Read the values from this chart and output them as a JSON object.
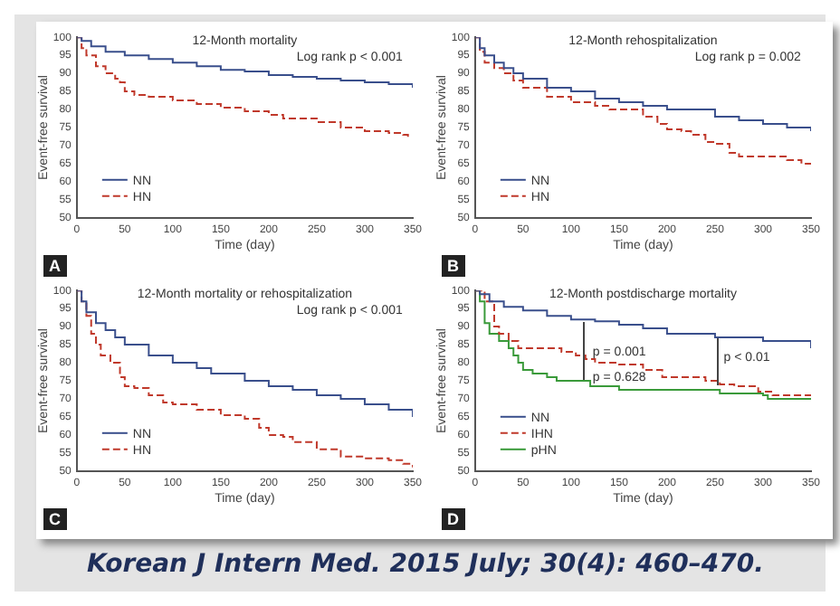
{
  "chart_data": [
    {
      "type": "step",
      "title": "12-Month mortality",
      "xlabel": "Time (day)",
      "ylabel": "Event-free survival",
      "annotations": [
        "A",
        "Log rank p < 0.001"
      ],
      "xlim": [
        0,
        350
      ],
      "xticks": [
        0,
        50,
        100,
        150,
        200,
        250,
        300,
        350
      ],
      "ylim": [
        50,
        100
      ],
      "yticks": [
        50,
        55,
        60,
        65,
        70,
        75,
        80,
        85,
        90,
        95,
        100
      ],
      "legend": "bottom left",
      "series": [
        {
          "name": "NN",
          "color": "#3a4f8c",
          "line_style": "solid",
          "x": [
            0,
            5,
            15,
            30,
            50,
            75,
            100,
            125,
            150,
            175,
            200,
            225,
            250,
            275,
            300,
            325,
            350
          ],
          "values": [
            100,
            99,
            97.5,
            96,
            95,
            94,
            93,
            92,
            91,
            90.5,
            89.5,
            89,
            88.5,
            88,
            87.5,
            87,
            86
          ]
        },
        {
          "name": "HN",
          "color": "#c0392b",
          "line_style": "dashed",
          "x": [
            0,
            5,
            10,
            20,
            30,
            40,
            45,
            50,
            60,
            75,
            100,
            125,
            150,
            175,
            200,
            215,
            250,
            275,
            300,
            325,
            340,
            345
          ],
          "values": [
            100,
            97,
            95,
            92,
            90,
            88.5,
            87.5,
            85,
            84,
            83.5,
            82.5,
            81.5,
            80.5,
            79.5,
            78.5,
            77.5,
            76.5,
            75,
            74,
            73.5,
            73,
            72
          ]
        }
      ]
    },
    {
      "type": "step",
      "title": "12-Month rehospitalization",
      "xlabel": "Time (day)",
      "ylabel": "Event-free survival",
      "annotations": [
        "B",
        "Log rank p = 0.002"
      ],
      "xlim": [
        0,
        350
      ],
      "xticks": [
        0,
        50,
        100,
        150,
        200,
        250,
        300,
        350
      ],
      "ylim": [
        50,
        100
      ],
      "yticks": [
        50,
        55,
        60,
        65,
        70,
        75,
        80,
        85,
        90,
        95,
        100
      ],
      "legend": "bottom left",
      "series": [
        {
          "name": "NN",
          "color": "#3a4f8c",
          "line_style": "solid",
          "x": [
            0,
            5,
            10,
            20,
            30,
            40,
            50,
            75,
            100,
            125,
            150,
            175,
            200,
            215,
            250,
            275,
            300,
            325,
            350
          ],
          "values": [
            100,
            97,
            95,
            93,
            91.5,
            90,
            88.5,
            86,
            85,
            83,
            82,
            81,
            80,
            80,
            78,
            77,
            76,
            75,
            74
          ]
        },
        {
          "name": "HN",
          "color": "#c0392b",
          "line_style": "dashed",
          "x": [
            0,
            5,
            10,
            20,
            30,
            40,
            50,
            75,
            100,
            125,
            140,
            165,
            175,
            190,
            200,
            215,
            225,
            240,
            250,
            265,
            275,
            300,
            315,
            325,
            340,
            350
          ],
          "values": [
            100,
            96,
            93,
            91.5,
            90,
            88,
            86,
            83.5,
            82,
            81,
            80,
            80,
            78,
            76,
            74.5,
            74,
            73,
            71,
            70.5,
            68,
            67,
            67,
            67,
            66,
            65,
            64.5
          ]
        }
      ]
    },
    {
      "type": "step",
      "title": "12-Month mortality or rehospitalization",
      "xlabel": "Time (day)",
      "ylabel": "Event-free survival",
      "annotations": [
        "C",
        "Log rank p < 0.001"
      ],
      "xlim": [
        0,
        350
      ],
      "xticks": [
        0,
        50,
        100,
        150,
        200,
        250,
        300,
        350
      ],
      "ylim": [
        50,
        100
      ],
      "yticks": [
        50,
        55,
        60,
        65,
        70,
        75,
        80,
        85,
        90,
        95,
        100
      ],
      "legend": "bottom left",
      "series": [
        {
          "name": "NN",
          "color": "#3a4f8c",
          "line_style": "solid",
          "x": [
            0,
            5,
            10,
            20,
            30,
            40,
            50,
            75,
            100,
            125,
            140,
            175,
            200,
            225,
            250,
            275,
            300,
            325,
            350
          ],
          "values": [
            100,
            97,
            94,
            91,
            89,
            87,
            85,
            82,
            80,
            78.5,
            77,
            75,
            73.5,
            72.5,
            71,
            70,
            68.5,
            67,
            65
          ]
        },
        {
          "name": "HN",
          "color": "#c0392b",
          "line_style": "dashed",
          "x": [
            0,
            5,
            10,
            15,
            20,
            25,
            35,
            45,
            50,
            60,
            75,
            90,
            100,
            125,
            150,
            175,
            190,
            200,
            215,
            225,
            250,
            265,
            275,
            300,
            325,
            340,
            350
          ],
          "values": [
            100,
            97,
            93,
            88,
            85,
            82,
            80,
            76,
            73.5,
            73,
            71,
            69,
            68.5,
            67,
            65.5,
            64.5,
            62,
            60,
            59.5,
            58,
            56,
            56,
            54,
            53.5,
            53,
            52,
            51
          ]
        }
      ]
    },
    {
      "type": "step",
      "title": "12-Month postdischarge mortality",
      "xlabel": "Time (day)",
      "ylabel": "Event-free survival",
      "annotations": [
        "D",
        "p = 0.001",
        "p = 0.628",
        "p < 0.01"
      ],
      "xlim": [
        0,
        350
      ],
      "xticks": [
        0,
        50,
        100,
        150,
        200,
        250,
        300,
        350
      ],
      "ylim": [
        50,
        100
      ],
      "yticks": [
        50,
        55,
        60,
        65,
        70,
        75,
        80,
        85,
        90,
        95,
        100
      ],
      "legend": "bottom left",
      "series": [
        {
          "name": "NN",
          "color": "#3a4f8c",
          "line_style": "solid",
          "x": [
            0,
            5,
            15,
            30,
            50,
            75,
            100,
            125,
            150,
            175,
            200,
            250,
            300,
            350
          ],
          "values": [
            100,
            99,
            97,
            95.5,
            94.5,
            93,
            92,
            91.5,
            90.5,
            89.5,
            88,
            87,
            86,
            84
          ]
        },
        {
          "name": "IHN",
          "color": "#c0392b",
          "line_style": "dashed",
          "x": [
            0,
            10,
            20,
            25,
            35,
            45,
            60,
            90,
            105,
            115,
            125,
            150,
            175,
            195,
            240,
            255,
            270,
            295,
            310,
            350
          ],
          "values": [
            100,
            97,
            90,
            88,
            86,
            84,
            84,
            83,
            82,
            81,
            80,
            79.5,
            78,
            76,
            75,
            74,
            73.5,
            72,
            71,
            70
          ]
        },
        {
          "name": "pHN",
          "color": "#3a9a3a",
          "line_style": "solid",
          "x": [
            0,
            5,
            10,
            15,
            25,
            35,
            40,
            45,
            50,
            60,
            75,
            85,
            115,
            120,
            150,
            250,
            255,
            300,
            305,
            350
          ],
          "values": [
            100,
            97,
            91,
            88,
            86,
            84,
            82,
            80,
            78,
            77,
            76,
            75,
            75,
            73.5,
            72.5,
            72.5,
            71.5,
            71,
            70,
            70
          ]
        }
      ]
    },
    {
      "type": "other",
      "annotations": [
        "Korean J Intern Med. 2015 July; 30(4): 460–470."
      ]
    }
  ]
}
